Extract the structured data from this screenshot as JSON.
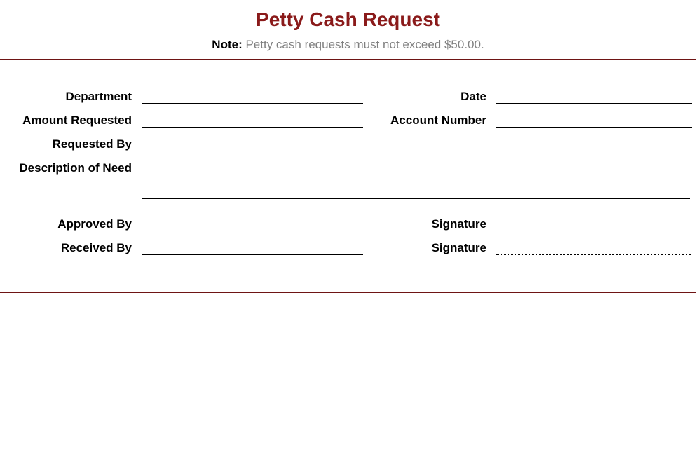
{
  "colors": {
    "title": "#8a1a1a",
    "hr": "#6e1414",
    "note_label": "#000000",
    "note_text": "#808080"
  },
  "title": "Petty Cash Request",
  "note_label": "Note:",
  "note_text": " Petty cash requests must not exceed $50.00.",
  "labels": {
    "department": "Department",
    "date": "Date",
    "amount_requested": "Amount Requested",
    "account_number": "Account Number",
    "requested_by": "Requested By",
    "description": "Description of Need",
    "approved_by": "Approved By",
    "signature1": "Signature",
    "received_by": "Received By",
    "signature2": "Signature"
  }
}
